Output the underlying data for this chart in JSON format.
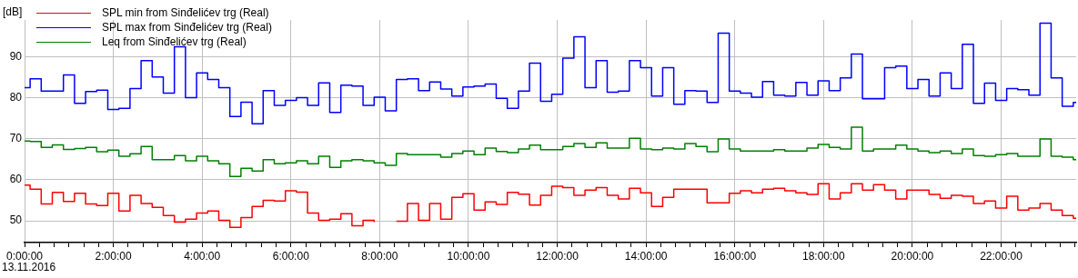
{
  "chart_data": {
    "type": "step",
    "ylabel": "[dB]",
    "annotations": [
      "13.11.2016"
    ],
    "x": [
      0,
      0.125,
      0.375,
      0.625,
      0.875,
      1.125,
      1.375,
      1.625,
      1.875,
      2.125,
      2.375,
      2.625,
      2.875,
      3.125,
      3.375,
      3.625,
      3.875,
      4.125,
      4.375,
      4.625,
      4.875,
      5.125,
      5.375,
      5.625,
      5.875,
      6.125,
      6.375,
      6.625,
      6.875,
      7.125,
      7.375,
      7.625,
      7.875,
      8.125,
      8.375,
      8.625,
      8.875,
      9.125,
      9.375,
      9.625,
      9.875,
      10.125,
      10.375,
      10.625,
      10.875,
      11.125,
      11.375,
      11.625,
      11.875,
      12.125,
      12.375,
      12.625,
      12.875,
      13.125,
      13.375,
      13.625,
      13.875,
      14.125,
      14.375,
      14.625,
      14.875,
      15.125,
      15.375,
      15.625,
      15.875,
      16.125,
      16.375,
      16.625,
      16.875,
      17.125,
      17.375,
      17.625,
      17.875,
      18.125,
      18.375,
      18.625,
      18.875,
      19.125,
      19.375,
      19.625,
      19.875,
      20.125,
      20.375,
      20.625,
      20.875,
      21.125,
      21.375,
      21.625,
      21.875,
      22.125,
      22.375,
      22.625,
      22.875,
      23.125,
      23.375,
      23.625
    ],
    "series": [
      {
        "name": "SPL min from Sinđelićev trg (Real)",
        "color": "#ff0000",
        "values": [
          58.7,
          57.7,
          54.1,
          56.9,
          54.7,
          56.7,
          54.1,
          53.7,
          56.7,
          52.4,
          56.2,
          54.2,
          53.3,
          51.3,
          49.7,
          50.4,
          51.9,
          52.4,
          50.1,
          48.4,
          50.8,
          53.5,
          55.0,
          54.8,
          57.3,
          57.0,
          51.9,
          50.1,
          50.4,
          51.7,
          48.8,
          50.1,
          49.7,
          null,
          49.9,
          54.2,
          50.1,
          54.2,
          50.4,
          55.7,
          56.6,
          52.6,
          54.6,
          54.0,
          56.9,
          56.5,
          53.8,
          56.2,
          58.4,
          58.1,
          56.2,
          57.5,
          58.1,
          56.2,
          55.3,
          57.9,
          56.8,
          53.5,
          55.7,
          57.7,
          57.7,
          57.7,
          54.4,
          54.4,
          56.7,
          57.3,
          56.8,
          57.7,
          57.9,
          57.3,
          56.8,
          56.4,
          59.0,
          55.3,
          56.8,
          59.0,
          57.5,
          58.8,
          57.5,
          55.3,
          57.5,
          57.5,
          56.4,
          55.5,
          56.2,
          56.0,
          54.2,
          54.8,
          53.1,
          56.0,
          52.6,
          53.1,
          54.2,
          52.6,
          51.3,
          50.6
        ]
      },
      {
        "name": "SPL max from Sinđelićev trg (Real)",
        "color": "#0000ff",
        "values": [
          82.4,
          84.6,
          81.6,
          81.6,
          85.5,
          78.6,
          81.5,
          81.8,
          77.1,
          77.4,
          82.2,
          89.0,
          85.0,
          81.1,
          92.4,
          80.0,
          86.0,
          84.4,
          82.4,
          75.4,
          78.9,
          73.6,
          81.7,
          78.1,
          79.3,
          80.0,
          78.1,
          83.6,
          76.4,
          83.0,
          82.8,
          78.1,
          80.1,
          76.8,
          84.4,
          84.6,
          81.7,
          83.8,
          82.1,
          80.4,
          82.6,
          82.8,
          83.3,
          79.8,
          77.4,
          81.6,
          88.4,
          79.1,
          80.8,
          89.6,
          94.8,
          82.4,
          89.0,
          81.3,
          81.6,
          89.0,
          87.3,
          80.4,
          87.3,
          78.4,
          81.7,
          81.6,
          78.8,
          95.7,
          81.6,
          81.1,
          80.1,
          83.9,
          80.6,
          80.4,
          83.7,
          80.6,
          84.1,
          81.7,
          84.8,
          90.6,
          79.7,
          79.7,
          87.3,
          87.7,
          82.2,
          84.4,
          80.4,
          86.0,
          82.2,
          93.0,
          78.6,
          83.5,
          79.3,
          82.2,
          81.9,
          80.6,
          98.1,
          84.8,
          77.9,
          78.8
        ]
      },
      {
        "name": "Leq from Sinđelićev trg (Real)",
        "color": "#008000",
        "values": [
          69.4,
          69.3,
          67.9,
          68.5,
          67.4,
          67.6,
          67.9,
          66.8,
          67.2,
          65.7,
          66.3,
          68.1,
          64.9,
          64.9,
          65.9,
          64.6,
          65.7,
          64.6,
          63.9,
          60.8,
          62.8,
          62.1,
          64.9,
          63.9,
          64.1,
          64.6,
          63.9,
          65.7,
          63.0,
          64.6,
          64.9,
          64.6,
          64.1,
          63.5,
          66.4,
          66.1,
          66.1,
          66.1,
          65.5,
          66.4,
          67.0,
          66.1,
          67.7,
          66.9,
          66.6,
          67.5,
          68.4,
          67.3,
          67.3,
          68.1,
          68.8,
          67.9,
          69.0,
          67.7,
          67.7,
          70.1,
          67.5,
          67.3,
          67.7,
          67.5,
          68.8,
          68.1,
          66.8,
          69.9,
          67.5,
          67.0,
          67.0,
          67.0,
          67.3,
          67.0,
          67.0,
          67.7,
          68.6,
          67.9,
          67.5,
          72.8,
          67.0,
          67.5,
          67.5,
          68.4,
          67.5,
          67.0,
          66.6,
          67.0,
          66.4,
          67.5,
          65.9,
          65.7,
          66.1,
          66.4,
          65.7,
          65.7,
          69.9,
          65.7,
          65.5,
          64.9
        ]
      }
    ],
    "xlim": [
      0,
      23.69
    ],
    "ylim": [
      44.7,
      98.9
    ],
    "yticks": [
      50,
      60,
      70,
      80,
      90
    ],
    "xticks": [
      {
        "value": 0,
        "label": "0:00:00"
      },
      {
        "value": 0.3333,
        "label": null
      },
      {
        "value": 0.6667,
        "label": null
      },
      {
        "value": 1,
        "label": null
      },
      {
        "value": 1.3333,
        "label": null
      },
      {
        "value": 1.6667,
        "label": null
      },
      {
        "value": 2,
        "label": "2:00:00"
      },
      {
        "value": 2.3333,
        "label": null
      },
      {
        "value": 2.6667,
        "label": null
      },
      {
        "value": 3,
        "label": null
      },
      {
        "value": 3.3333,
        "label": null
      },
      {
        "value": 3.6667,
        "label": null
      },
      {
        "value": 4,
        "label": "4:00:00"
      },
      {
        "value": 4.3333,
        "label": null
      },
      {
        "value": 4.6667,
        "label": null
      },
      {
        "value": 5,
        "label": null
      },
      {
        "value": 5.3333,
        "label": null
      },
      {
        "value": 5.6667,
        "label": null
      },
      {
        "value": 6,
        "label": "6:00:00"
      },
      {
        "value": 6.3333,
        "label": null
      },
      {
        "value": 6.6667,
        "label": null
      },
      {
        "value": 7,
        "label": null
      },
      {
        "value": 7.3333,
        "label": null
      },
      {
        "value": 7.6667,
        "label": null
      },
      {
        "value": 8,
        "label": "8:00:00"
      },
      {
        "value": 8.3333,
        "label": null
      },
      {
        "value": 8.6667,
        "label": null
      },
      {
        "value": 9,
        "label": null
      },
      {
        "value": 9.3333,
        "label": null
      },
      {
        "value": 9.6667,
        "label": null
      },
      {
        "value": 10,
        "label": "10:00:00"
      },
      {
        "value": 10.3333,
        "label": null
      },
      {
        "value": 10.6667,
        "label": null
      },
      {
        "value": 11,
        "label": null
      },
      {
        "value": 11.3333,
        "label": null
      },
      {
        "value": 11.6667,
        "label": null
      },
      {
        "value": 12,
        "label": "12:00:00"
      },
      {
        "value": 12.3333,
        "label": null
      },
      {
        "value": 12.6667,
        "label": null
      },
      {
        "value": 13,
        "label": null
      },
      {
        "value": 13.3333,
        "label": null
      },
      {
        "value": 13.6667,
        "label": null
      },
      {
        "value": 14,
        "label": "14:00:00"
      },
      {
        "value": 14.3333,
        "label": null
      },
      {
        "value": 14.6667,
        "label": null
      },
      {
        "value": 15,
        "label": null
      },
      {
        "value": 15.3333,
        "label": null
      },
      {
        "value": 15.6667,
        "label": null
      },
      {
        "value": 16,
        "label": "16:00:00"
      },
      {
        "value": 16.3333,
        "label": null
      },
      {
        "value": 16.6667,
        "label": null
      },
      {
        "value": 17,
        "label": null
      },
      {
        "value": 17.3333,
        "label": null
      },
      {
        "value": 17.6667,
        "label": null
      },
      {
        "value": 18,
        "label": "18:00:00"
      },
      {
        "value": 18.3333,
        "label": null
      },
      {
        "value": 18.6667,
        "label": null
      },
      {
        "value": 19,
        "label": null
      },
      {
        "value": 19.3333,
        "label": null
      },
      {
        "value": 19.6667,
        "label": null
      },
      {
        "value": 20,
        "label": "20:00:00"
      },
      {
        "value": 20.3333,
        "label": null
      },
      {
        "value": 20.6667,
        "label": null
      },
      {
        "value": 21,
        "label": null
      },
      {
        "value": 21.3333,
        "label": null
      },
      {
        "value": 21.6667,
        "label": null
      },
      {
        "value": 22,
        "label": "22:00:00"
      },
      {
        "value": 22.3333,
        "label": null
      },
      {
        "value": 22.6667,
        "label": null
      },
      {
        "value": 23,
        "label": null
      },
      {
        "value": 23.3333,
        "label": null
      },
      {
        "value": 23.6667,
        "label": null
      }
    ],
    "grid": true,
    "legend": "top left"
  }
}
